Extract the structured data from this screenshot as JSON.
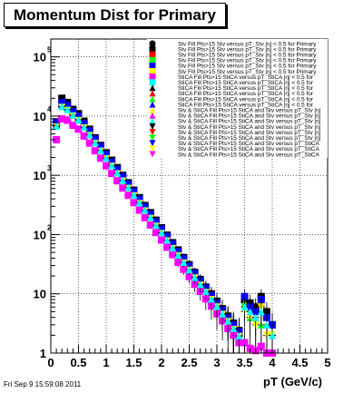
{
  "title": "Momentum Dist for Primary",
  "timestamp": "Fri Sep  9 15:59:08 2011",
  "chart_data": {
    "type": "scatter",
    "xlabel": "pT (GeV/c)",
    "ylabel": "",
    "xlim": [
      0,
      5
    ],
    "ylim": [
      1,
      200000
    ],
    "ylog": true,
    "grid": true,
    "legend_position": "top-right",
    "x_ticks": [
      "0",
      "0.5",
      "1",
      "1.5",
      "2",
      "2.5",
      "3",
      "3.5",
      "4",
      "4.5",
      "5"
    ],
    "y_ticks": [
      {
        "base": "1",
        "exp": ""
      },
      {
        "base": "10",
        "exp": ""
      },
      {
        "base": "10",
        "exp": "2"
      },
      {
        "base": "10",
        "exp": "3"
      },
      {
        "base": "10",
        "exp": "4"
      },
      {
        "base": "10",
        "exp": "5"
      }
    ],
    "x": [
      0.1,
      0.2,
      0.3,
      0.4,
      0.5,
      0.6,
      0.7,
      0.8,
      0.9,
      1.0,
      1.1,
      1.2,
      1.3,
      1.4,
      1.5,
      1.6,
      1.7,
      1.8,
      1.9,
      2.0,
      2.1,
      2.2,
      2.3,
      2.4,
      2.5,
      2.6,
      2.7,
      2.8,
      2.9,
      3.0,
      3.1,
      3.2,
      3.3,
      3.4,
      3.5,
      3.6,
      3.7,
      3.8,
      3.9,
      4.0
    ],
    "series": [
      {
        "color": "#000000",
        "marker": "square",
        "values": [
          8000,
          20000,
          17000,
          13000,
          11000,
          8200,
          6000,
          4300,
          3200,
          2400,
          1800,
          1350,
          1000,
          750,
          560,
          420,
          310,
          235,
          175,
          130,
          98,
          73,
          55,
          41,
          31,
          23,
          17.5,
          13,
          10,
          7.5,
          5.6,
          4.2,
          3.2,
          2.4,
          8,
          7,
          6,
          9,
          5,
          3
        ]
      },
      {
        "color": "#ff0000",
        "marker": "triangle-up",
        "values": [
          7500,
          16000,
          14500,
          11500,
          9500,
          7200,
          5300,
          3900,
          2900,
          2150,
          1600,
          1200,
          900,
          680,
          500,
          375,
          280,
          210,
          155,
          117,
          88,
          66,
          49,
          37,
          28,
          21,
          16,
          12,
          9,
          6.8,
          5.1,
          3.8,
          2.9,
          2.2,
          6,
          5,
          4,
          7,
          3,
          2
        ]
      },
      {
        "color": "#00ff00",
        "marker": "triangle-up",
        "values": [
          7000,
          15000,
          13500,
          10800,
          9000,
          6800,
          5000,
          3700,
          2750,
          2050,
          1520,
          1140,
          860,
          650,
          480,
          360,
          268,
          200,
          148,
          111,
          83,
          62,
          47,
          35,
          26,
          20,
          15,
          11.5,
          8.5,
          6.4,
          4.8,
          3.6,
          2.7,
          2.0,
          7,
          4,
          5,
          3,
          4,
          2
        ]
      },
      {
        "color": "#0000ff",
        "marker": "square",
        "values": [
          7800,
          17000,
          15000,
          12000,
          10000,
          7500,
          5600,
          4100,
          3050,
          2250,
          1680,
          1260,
          950,
          710,
          530,
          395,
          295,
          222,
          165,
          124,
          93,
          70,
          52,
          39,
          29.5,
          22,
          16.5,
          12.5,
          9.5,
          7,
          5.3,
          4,
          3,
          2.3,
          9,
          6,
          5,
          8,
          4,
          3
        ]
      },
      {
        "color": "#ffff00",
        "marker": "triangle-down",
        "values": [
          6500,
          14000,
          12500,
          10000,
          8400,
          6300,
          4700,
          3450,
          2550,
          1900,
          1420,
          1060,
          800,
          600,
          450,
          335,
          250,
          187,
          138,
          104,
          78,
          58,
          44,
          33,
          25,
          18.5,
          14,
          10.5,
          8,
          6,
          4.5,
          3.4,
          2.5,
          1.9,
          5,
          4,
          3,
          6,
          2,
          2
        ]
      },
      {
        "color": "#ff00ff",
        "marker": "square",
        "values": [
          4000,
          9000,
          8500,
          7000,
          6000,
          4600,
          3500,
          2600,
          1950,
          1450,
          1080,
          810,
          610,
          460,
          345,
          258,
          193,
          145,
          108,
          81,
          61,
          46,
          34,
          26,
          19.5,
          14.5,
          11,
          8.2,
          6.2,
          4.6,
          3.5,
          2.6,
          2,
          1.5,
          1.5,
          1.2,
          1.1,
          1.3,
          1,
          1
        ]
      },
      {
        "color": "#00ffff",
        "marker": "triangle-up",
        "values": [
          6800,
          14500,
          13000,
          10400,
          8700,
          6500,
          4850,
          3580,
          2650,
          1970,
          1470,
          1100,
          830,
          625,
          465,
          348,
          260,
          195,
          144,
          108,
          81,
          60,
          45,
          34,
          25.5,
          19,
          14.5,
          11,
          8.2,
          6.2,
          4.6,
          3.5,
          2.6,
          1.95,
          6,
          5,
          4,
          5,
          3,
          2
        ]
      }
    ],
    "legend": [
      {
        "marker": "circle",
        "color": "#000000",
        "label": "Stv Fill Pts>15 Stv versus pT_Stv |η| < 0.5 for Primary"
      },
      {
        "marker": "square",
        "color": "#000000",
        "label": "Stv Fill Pts>15 Stv versus pT_Stv |η| < 0.5 for Primary"
      },
      {
        "marker": "square",
        "color": "#ff0000",
        "label": "Stv Fill Pts>15 Stv versus pT_Stv |η| < 0.5 for Primary"
      },
      {
        "marker": "square",
        "color": "#00ff00",
        "label": "Stv Fill Pts>15 Stv versus pT_Stv |η| < 0.5 for Primary"
      },
      {
        "marker": "square",
        "color": "#0000ff",
        "label": "Stv Fill Pts>15 Stv versus pT_Stv |η| < 0.5 for Primary"
      },
      {
        "marker": "square",
        "color": "#ffff00",
        "label": "Stv Fill Pts>15 Stv versus pT_Stv |η| < 0.5 for Primary"
      },
      {
        "marker": "square",
        "color": "#ff00ff",
        "label": "StiCA Fill Pts>15 StiCA versus pT_StiCA |η| < 0.5 for"
      },
      {
        "marker": "square",
        "color": "#00ffff",
        "label": "StiCA Fill Pts>15 StiCA versus pT_StiCA |η| < 0.5 for"
      },
      {
        "marker": "triangle-up",
        "color": "#000000",
        "label": "StiCA Fill Pts>15 StiCA versus pT_StiCA |η| < 0.5 for"
      },
      {
        "marker": "triangle-up",
        "color": "#ff0000",
        "label": "StiCA Fill Pts>15 StiCA versus pT_StiCA |η| < 0.5 for"
      },
      {
        "marker": "triangle-up",
        "color": "#00ff00",
        "label": "StiCA Fill Pts>15 StiCA versus pT_StiCA |η| < 0.5 for"
      },
      {
        "marker": "triangle-up",
        "color": "#0000ff",
        "label": "StiCA Fill Pts>15 StiCA versus pT_StiCA |η| < 0.5 for"
      },
      {
        "marker": "triangle-up",
        "color": "#ffff00",
        "label": "Stv & StiCA Fill Pts>15 StiCA and Stv versus pT_Stv |η|"
      },
      {
        "marker": "triangle-up",
        "color": "#ff00ff",
        "label": "Stv & StiCA Fill Pts>15 StiCA and Stv versus pT_Stv |η|"
      },
      {
        "marker": "triangle-up",
        "color": "#00ffff",
        "label": "Stv & StiCA Fill Pts>15 StiCA and Stv versus pT_Stv |η|"
      },
      {
        "marker": "triangle-down",
        "color": "#000000",
        "label": "Stv & StiCA Fill Pts>15 StiCA and Stv versus pT_Stv |η|"
      },
      {
        "marker": "triangle-down",
        "color": "#ff0000",
        "label": "Stv & StiCA Fill Pts>15 StiCA and Stv versus pT_Stv |η|"
      },
      {
        "marker": "triangle-down",
        "color": "#00ff00",
        "label": "Stv & StiCA Fill Pts>15 StiCA and Stv versus pT_Stv |η|"
      },
      {
        "marker": "triangle-down",
        "color": "#0000ff",
        "label": "Stv & StiCA Fill Pts>15 StiCA and Stv versus pT_StiCA"
      },
      {
        "marker": "triangle-down",
        "color": "#ffff00",
        "label": "Stv & StiCA Fill Pts>15 StiCA and Stv versus pT_StiCA"
      },
      {
        "marker": "triangle-down",
        "color": "#ff00ff",
        "label": "Stv & StiCA Fill Pts>15 StiCA and Stv versus pT_StiCA"
      }
    ]
  }
}
